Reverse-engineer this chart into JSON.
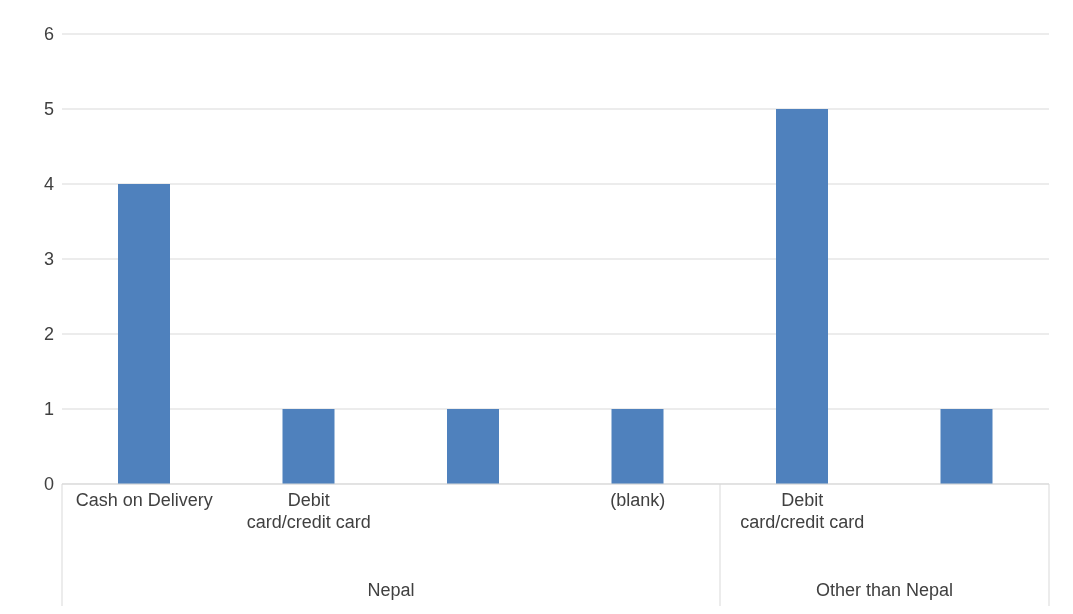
{
  "chart_data": {
    "type": "bar",
    "categories": [
      "Cash on Delivery",
      "Debit card/credit card",
      null,
      "(blank)",
      "Debit card/credit card",
      null
    ],
    "values": [
      4,
      1,
      1,
      1,
      5,
      1
    ],
    "color": "#4f81bd",
    "ylim": [
      0,
      6
    ],
    "yticks": [
      0,
      1,
      2,
      3,
      4,
      5,
      6
    ],
    "grid": "y",
    "annotations": [
      "Nepal",
      "Other than Nepal"
    ]
  }
}
